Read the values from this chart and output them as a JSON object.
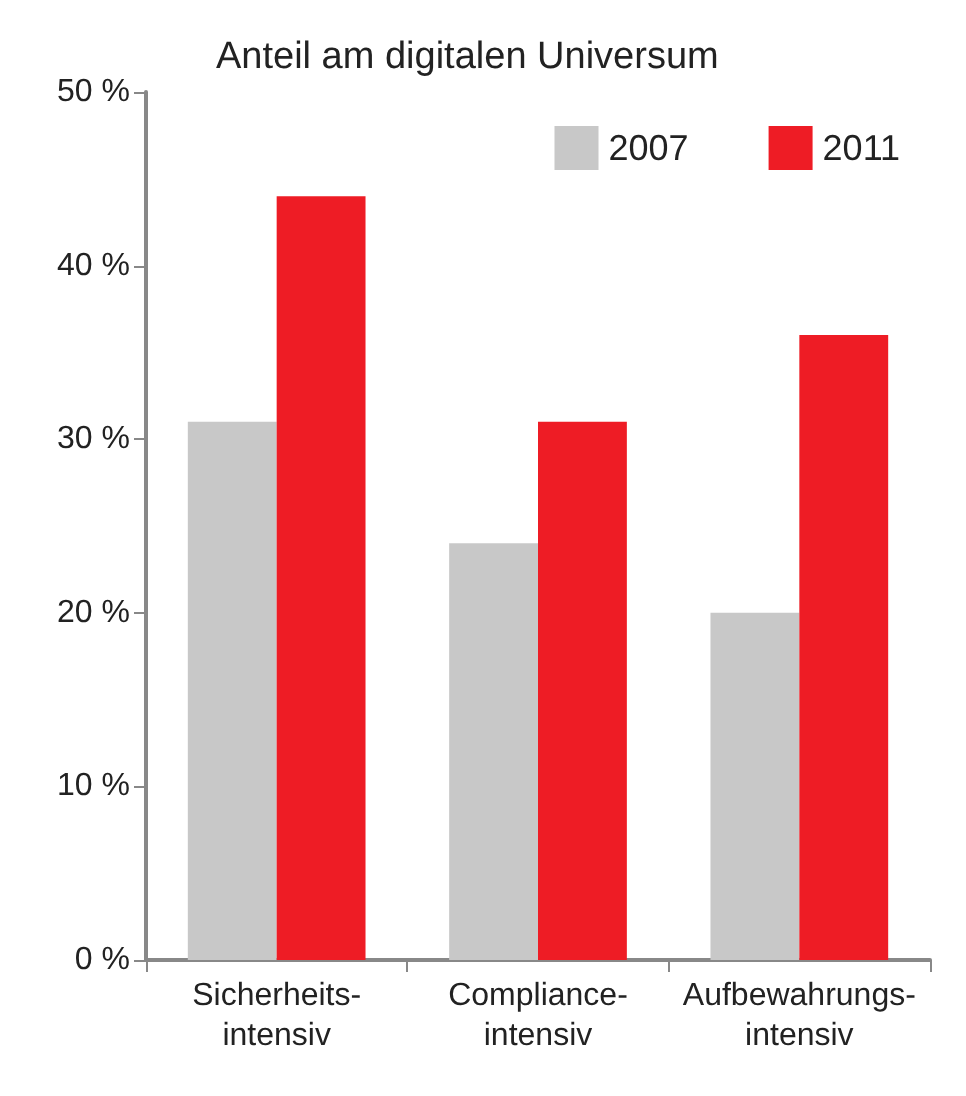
{
  "chart_data": {
    "type": "bar",
    "title": "Anteil am digitalen Universum",
    "categories": [
      "Sicherheits-\nintensiv",
      "Compliance-\nintensiv",
      "Aufbewahrungs-\nintensiv"
    ],
    "series": [
      {
        "name": "2007",
        "color": "#c8c8c8",
        "values": [
          31,
          24,
          20
        ]
      },
      {
        "name": "2011",
        "color": "#ee1c25",
        "values": [
          44,
          31,
          36
        ]
      }
    ],
    "ylim": [
      0,
      50
    ],
    "yticks": [
      {
        "value": 0,
        "label": "0 %"
      },
      {
        "value": 10,
        "label": "10 %"
      },
      {
        "value": 20,
        "label": "20 %"
      },
      {
        "value": 30,
        "label": "30 %"
      },
      {
        "value": 40,
        "label": "40 %"
      },
      {
        "value": 50,
        "label": "50 %"
      }
    ],
    "grid": false,
    "legend": "top right"
  }
}
